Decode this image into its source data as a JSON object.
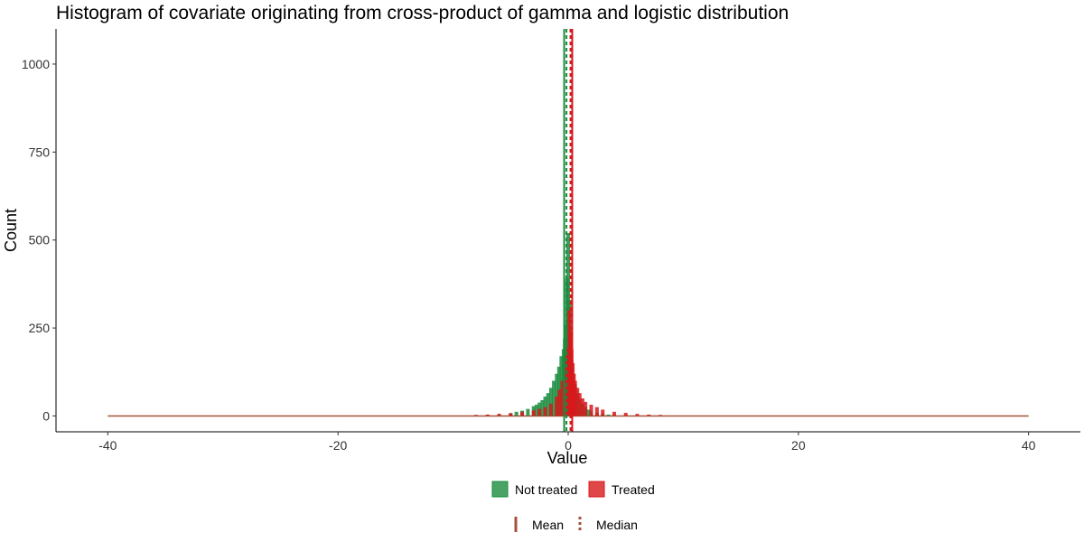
{
  "chart_data": {
    "type": "histogram",
    "title": "Histogram of covariate originating from cross-product of gamma and logistic distribution",
    "xlabel": "Value",
    "ylabel": "Count",
    "xlim": [
      -44.5,
      44.5
    ],
    "ylim": [
      -45,
      1100
    ],
    "xticks": [
      -40,
      -20,
      0,
      20,
      40
    ],
    "yticks": [
      0,
      250,
      500,
      750,
      1000
    ],
    "grid": false,
    "legend_position": "bottom",
    "series": [
      {
        "name": "Not treated",
        "color": "#1a8c3e",
        "bin_centers": [
          -8,
          -7,
          -6,
          -5,
          -4.5,
          -4,
          -3.5,
          -3,
          -2.75,
          -2.5,
          -2.25,
          -2,
          -1.75,
          -1.5,
          -1.25,
          -1,
          -0.8,
          -0.6,
          -0.4,
          -0.3,
          -0.2,
          -0.1,
          0,
          0.1,
          0.2,
          0.3,
          0.4,
          0.6,
          0.8,
          1,
          1.25,
          1.5,
          1.75,
          2,
          2.5,
          3,
          3.5,
          4,
          5,
          6,
          7,
          8
        ],
        "counts": [
          2,
          3,
          5,
          8,
          12,
          15,
          20,
          28,
          32,
          38,
          45,
          55,
          65,
          80,
          100,
          120,
          140,
          170,
          190,
          220,
          260,
          390,
          520,
          330,
          220,
          160,
          120,
          90,
          65,
          48,
          35,
          25,
          18,
          13,
          9,
          6,
          4,
          3,
          2,
          1,
          1,
          0
        ]
      },
      {
        "name": "Treated",
        "color": "#d7191c",
        "bin_centers": [
          -8,
          -7,
          -6,
          -5,
          -4,
          -3,
          -2.5,
          -2,
          -1.5,
          -1,
          -0.75,
          -0.5,
          -0.25,
          -0.1,
          0,
          0.1,
          0.2,
          0.3,
          0.4,
          0.5,
          0.6,
          0.8,
          1,
          1.25,
          1.5,
          2,
          2.5,
          3,
          4,
          5,
          6,
          7,
          8
        ],
        "counts": [
          3,
          4,
          6,
          8,
          12,
          16,
          20,
          25,
          35,
          55,
          75,
          100,
          140,
          170,
          190,
          300,
          240,
          190,
          150,
          120,
          100,
          80,
          65,
          50,
          40,
          32,
          25,
          18,
          12,
          9,
          6,
          4,
          3
        ]
      }
    ],
    "vlines": [
      {
        "series": "Not treated",
        "stat": "Mean",
        "x": -0.35,
        "color": "#1a8c3e"
      },
      {
        "series": "Not treated",
        "stat": "Median",
        "x": -0.15,
        "color": "#1a8c3e"
      },
      {
        "series": "Treated",
        "stat": "Mean",
        "x": 0.35,
        "color": "#d7191c"
      },
      {
        "series": "Treated",
        "stat": "Median",
        "x": 0.2,
        "color": "#d7191c"
      }
    ],
    "legend_fill": [
      "Not treated",
      "Treated"
    ],
    "legend_lines": [
      "Mean",
      "Median"
    ]
  }
}
